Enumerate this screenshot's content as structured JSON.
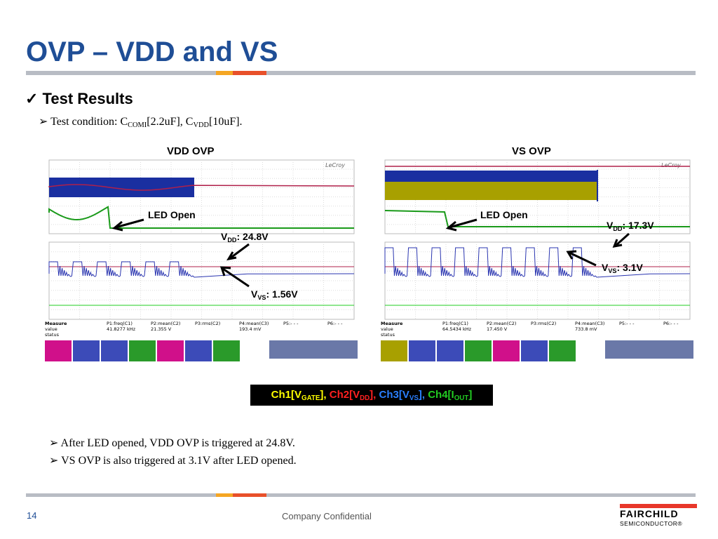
{
  "header": {
    "title": "OVP – VDD and VS"
  },
  "section": "Test Results",
  "condition": {
    "text": "Test condition: C",
    "sub1": "COMI",
    "mid": "[2.2uF], C",
    "sub2": "VDD",
    "end": "[10uF]."
  },
  "scopes": [
    {
      "title": "VDD OVP",
      "brand": "LeCroy",
      "led": "LED Open",
      "vdd": {
        "main": "V",
        "sub": "DD",
        "rest": ": 24.8V"
      },
      "vs": {
        "main": "V",
        "sub": "VS",
        "rest": ": 1.56V"
      },
      "measure": {
        "labels": [
          "Measure",
          "value",
          "status"
        ],
        "params": [
          {
            "name": "P1:freq(C1)",
            "value": "41.8277 kHz"
          },
          {
            "name": "P2:mean(C2)",
            "value": "21.355 V"
          },
          {
            "name": "P3:rms(C2)"
          },
          {
            "name": "P4:mean(C3)",
            "value": "193.4 mV"
          },
          {
            "name": "P5:- - -"
          },
          {
            "name": "P6:- - -"
          }
        ]
      }
    },
    {
      "title": "VS OVP",
      "brand": "LeCroy",
      "led": "LED Open",
      "vdd": {
        "main": "V",
        "sub": "DD",
        "rest": ": 17.3V"
      },
      "vs": {
        "main": "V",
        "sub": "VS",
        "rest": ": 3.1V"
      },
      "measure": {
        "labels": [
          "Measure",
          "value",
          "status"
        ],
        "params": [
          {
            "name": "P1:freq(C1)",
            "value": "64.5434 kHz"
          },
          {
            "name": "P2:mean(C2)",
            "value": "17.450 V"
          },
          {
            "name": "P3:rms(C2)"
          },
          {
            "name": "P4:mean(C3)",
            "value": "733.8 mV"
          },
          {
            "name": "P5:- - -"
          },
          {
            "name": "P6:- - -"
          }
        ]
      }
    }
  ],
  "legend": [
    {
      "main": "Ch1[V",
      "sub": "GATE",
      "end": "],",
      "color": "#ffff00"
    },
    {
      "main": "Ch2[V",
      "sub": "DD",
      "end": "],",
      "color": "#ff2020"
    },
    {
      "main": "Ch3[V",
      "sub": "VS",
      "end": "],",
      "color": "#2a7fff"
    },
    {
      "main": "Ch4[I",
      "sub": "OUT",
      "end": "]",
      "color": "#22cc22"
    }
  ],
  "bullets": [
    "After LED opened, VDD OVP is triggered at 24.8V.",
    "VS OVP is also triggered at 3.1V after LED opened."
  ],
  "footer": {
    "page": "14",
    "confidential": "Company Confidential",
    "logo": "FAIRCHILD",
    "logo_sub": "SEMICONDUCTOR®"
  }
}
